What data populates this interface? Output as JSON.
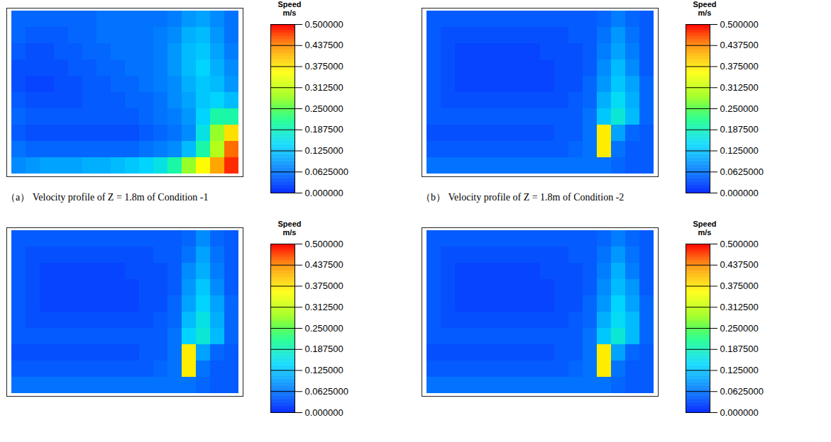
{
  "chart_data": [
    {
      "type": "heatmap",
      "title": "（a） Velocity profile of Z = 1.8m of Condition -1",
      "tick_labels": false,
      "cells": [
        [
          0.05,
          0.05,
          0.05,
          0.05,
          0.05,
          0.05,
          0.06,
          0.06,
          0.06,
          0.06,
          0.06,
          0.07,
          0.09,
          0.1,
          0.08,
          0.06
        ],
        [
          0.05,
          0.04,
          0.04,
          0.04,
          0.05,
          0.05,
          0.06,
          0.06,
          0.06,
          0.06,
          0.07,
          0.08,
          0.11,
          0.12,
          0.09,
          0.06
        ],
        [
          0.04,
          0.03,
          0.03,
          0.04,
          0.04,
          0.05,
          0.05,
          0.06,
          0.06,
          0.06,
          0.07,
          0.09,
          0.12,
          0.13,
          0.1,
          0.07
        ],
        [
          0.03,
          0.03,
          0.03,
          0.03,
          0.04,
          0.04,
          0.05,
          0.05,
          0.06,
          0.06,
          0.07,
          0.09,
          0.12,
          0.14,
          0.11,
          0.08
        ],
        [
          0.03,
          0.02,
          0.02,
          0.03,
          0.03,
          0.04,
          0.04,
          0.05,
          0.05,
          0.06,
          0.07,
          0.08,
          0.11,
          0.13,
          0.12,
          0.09
        ],
        [
          0.04,
          0.03,
          0.03,
          0.03,
          0.03,
          0.04,
          0.04,
          0.04,
          0.05,
          0.05,
          0.06,
          0.08,
          0.1,
          0.13,
          0.14,
          0.12
        ],
        [
          0.05,
          0.04,
          0.04,
          0.04,
          0.04,
          0.04,
          0.04,
          0.04,
          0.04,
          0.05,
          0.06,
          0.07,
          0.09,
          0.14,
          0.2,
          0.2
        ],
        [
          0.04,
          0.03,
          0.03,
          0.03,
          0.03,
          0.03,
          0.03,
          0.03,
          0.03,
          0.04,
          0.05,
          0.06,
          0.08,
          0.16,
          0.28,
          0.38
        ],
        [
          0.06,
          0.05,
          0.05,
          0.05,
          0.05,
          0.05,
          0.05,
          0.05,
          0.05,
          0.06,
          0.07,
          0.08,
          0.12,
          0.2,
          0.3,
          0.45
        ],
        [
          0.08,
          0.09,
          0.1,
          0.1,
          0.1,
          0.11,
          0.11,
          0.12,
          0.13,
          0.14,
          0.16,
          0.2,
          0.28,
          0.36,
          0.42,
          0.48
        ]
      ],
      "colorbar": {
        "title": "Speed",
        "unit": "m/s",
        "range": [
          0,
          0.5
        ],
        "ticks": [
          {
            "value": 0.5,
            "label": "0.500000"
          },
          {
            "value": 0.4375,
            "label": "0.437500"
          },
          {
            "value": 0.375,
            "label": "0.375000"
          },
          {
            "value": 0.3125,
            "label": "0.312500"
          },
          {
            "value": 0.25,
            "label": "0.250000"
          },
          {
            "value": 0.1875,
            "label": "0.187500"
          },
          {
            "value": 0.125,
            "label": "0.125000"
          },
          {
            "value": 0.0625,
            "label": "0.0625000"
          },
          {
            "value": 0,
            "label": "0.000000"
          }
        ]
      }
    },
    {
      "type": "heatmap",
      "title": "（b） Velocity profile of Z = 1.8m of Condition -2",
      "tick_labels": false,
      "cells": [
        [
          0.04,
          0.04,
          0.04,
          0.04,
          0.04,
          0.04,
          0.04,
          0.04,
          0.04,
          0.04,
          0.04,
          0.04,
          0.05,
          0.07,
          0.05,
          0.04
        ],
        [
          0.04,
          0.03,
          0.03,
          0.03,
          0.03,
          0.03,
          0.03,
          0.03,
          0.03,
          0.03,
          0.04,
          0.04,
          0.06,
          0.09,
          0.06,
          0.04
        ],
        [
          0.04,
          0.03,
          0.02,
          0.02,
          0.02,
          0.02,
          0.02,
          0.02,
          0.03,
          0.03,
          0.03,
          0.04,
          0.07,
          0.1,
          0.07,
          0.04
        ],
        [
          0.04,
          0.03,
          0.02,
          0.02,
          0.02,
          0.02,
          0.02,
          0.02,
          0.02,
          0.03,
          0.03,
          0.04,
          0.08,
          0.12,
          0.08,
          0.04
        ],
        [
          0.04,
          0.03,
          0.02,
          0.02,
          0.02,
          0.02,
          0.02,
          0.02,
          0.02,
          0.03,
          0.03,
          0.05,
          0.09,
          0.13,
          0.1,
          0.05
        ],
        [
          0.04,
          0.03,
          0.03,
          0.03,
          0.03,
          0.03,
          0.03,
          0.03,
          0.03,
          0.03,
          0.04,
          0.05,
          0.11,
          0.15,
          0.11,
          0.05
        ],
        [
          0.04,
          0.04,
          0.04,
          0.04,
          0.04,
          0.04,
          0.04,
          0.04,
          0.04,
          0.04,
          0.04,
          0.06,
          0.13,
          0.17,
          0.12,
          0.05
        ],
        [
          0.03,
          0.03,
          0.03,
          0.03,
          0.03,
          0.03,
          0.03,
          0.03,
          0.03,
          0.04,
          0.04,
          0.06,
          0.37,
          0.1,
          0.05,
          0.04
        ],
        [
          0.04,
          0.04,
          0.04,
          0.04,
          0.04,
          0.04,
          0.04,
          0.04,
          0.04,
          0.04,
          0.05,
          0.06,
          0.37,
          0.06,
          0.04,
          0.04
        ],
        [
          0.06,
          0.06,
          0.06,
          0.06,
          0.06,
          0.06,
          0.06,
          0.06,
          0.06,
          0.06,
          0.06,
          0.06,
          0.06,
          0.05,
          0.04,
          0.04
        ]
      ],
      "colorbar": {
        "title": "Speed",
        "unit": "m/s",
        "range": [
          0,
          0.5
        ],
        "ticks": [
          {
            "value": 0.5,
            "label": "0.500000"
          },
          {
            "value": 0.4375,
            "label": "0.437500"
          },
          {
            "value": 0.375,
            "label": "0.375000"
          },
          {
            "value": 0.3125,
            "label": "0.312500"
          },
          {
            "value": 0.25,
            "label": "0.250000"
          },
          {
            "value": 0.1875,
            "label": "0.187500"
          },
          {
            "value": 0.125,
            "label": "0.125000"
          },
          {
            "value": 0.0625,
            "label": "0.0625000"
          },
          {
            "value": 0,
            "label": "0.000000"
          }
        ]
      }
    },
    {
      "type": "heatmap",
      "tick_labels": false,
      "cells": [
        [
          0.04,
          0.04,
          0.04,
          0.04,
          0.04,
          0.04,
          0.04,
          0.04,
          0.04,
          0.04,
          0.04,
          0.04,
          0.05,
          0.08,
          0.05,
          0.04
        ],
        [
          0.04,
          0.03,
          0.03,
          0.03,
          0.03,
          0.03,
          0.03,
          0.03,
          0.03,
          0.03,
          0.04,
          0.04,
          0.06,
          0.1,
          0.06,
          0.04
        ],
        [
          0.04,
          0.03,
          0.02,
          0.02,
          0.02,
          0.02,
          0.02,
          0.02,
          0.03,
          0.03,
          0.03,
          0.04,
          0.08,
          0.11,
          0.07,
          0.04
        ],
        [
          0.04,
          0.03,
          0.02,
          0.02,
          0.02,
          0.02,
          0.02,
          0.02,
          0.02,
          0.03,
          0.03,
          0.04,
          0.09,
          0.13,
          0.08,
          0.04
        ],
        [
          0.04,
          0.03,
          0.02,
          0.02,
          0.02,
          0.02,
          0.02,
          0.02,
          0.02,
          0.03,
          0.03,
          0.05,
          0.1,
          0.14,
          0.1,
          0.05
        ],
        [
          0.04,
          0.03,
          0.03,
          0.03,
          0.03,
          0.03,
          0.03,
          0.03,
          0.03,
          0.03,
          0.04,
          0.05,
          0.12,
          0.16,
          0.11,
          0.05
        ],
        [
          0.04,
          0.04,
          0.04,
          0.04,
          0.04,
          0.04,
          0.04,
          0.04,
          0.04,
          0.04,
          0.04,
          0.06,
          0.14,
          0.17,
          0.12,
          0.05
        ],
        [
          0.03,
          0.03,
          0.03,
          0.03,
          0.03,
          0.03,
          0.03,
          0.03,
          0.03,
          0.04,
          0.04,
          0.06,
          0.37,
          0.1,
          0.05,
          0.04
        ],
        [
          0.04,
          0.04,
          0.04,
          0.04,
          0.04,
          0.04,
          0.04,
          0.04,
          0.04,
          0.04,
          0.05,
          0.06,
          0.37,
          0.06,
          0.04,
          0.04
        ],
        [
          0.06,
          0.06,
          0.06,
          0.06,
          0.06,
          0.06,
          0.06,
          0.06,
          0.06,
          0.06,
          0.06,
          0.06,
          0.06,
          0.05,
          0.04,
          0.04
        ]
      ],
      "colorbar": {
        "title": "Speed",
        "unit": "m/s",
        "range": [
          0,
          0.5
        ],
        "ticks": [
          {
            "value": 0.5,
            "label": "0.500000"
          },
          {
            "value": 0.4375,
            "label": "0.437500"
          },
          {
            "value": 0.375,
            "label": "0.375000"
          },
          {
            "value": 0.3125,
            "label": "0.312500"
          },
          {
            "value": 0.25,
            "label": "0.250000"
          },
          {
            "value": 0.1875,
            "label": "0.187500"
          },
          {
            "value": 0.125,
            "label": "0.125000"
          },
          {
            "value": 0.0625,
            "label": "0.0625000"
          },
          {
            "value": 0,
            "label": "0.000000"
          }
        ]
      }
    },
    {
      "type": "heatmap",
      "tick_labels": false,
      "cells": [
        [
          0.04,
          0.04,
          0.04,
          0.04,
          0.04,
          0.04,
          0.04,
          0.04,
          0.04,
          0.04,
          0.04,
          0.04,
          0.05,
          0.07,
          0.05,
          0.04
        ],
        [
          0.04,
          0.03,
          0.03,
          0.03,
          0.03,
          0.03,
          0.03,
          0.03,
          0.03,
          0.03,
          0.04,
          0.04,
          0.06,
          0.09,
          0.06,
          0.04
        ],
        [
          0.04,
          0.03,
          0.02,
          0.02,
          0.02,
          0.02,
          0.02,
          0.02,
          0.03,
          0.03,
          0.03,
          0.04,
          0.07,
          0.11,
          0.07,
          0.04
        ],
        [
          0.04,
          0.03,
          0.02,
          0.02,
          0.02,
          0.02,
          0.02,
          0.02,
          0.02,
          0.03,
          0.03,
          0.04,
          0.08,
          0.12,
          0.09,
          0.04
        ],
        [
          0.04,
          0.03,
          0.02,
          0.02,
          0.02,
          0.02,
          0.02,
          0.02,
          0.02,
          0.03,
          0.03,
          0.05,
          0.09,
          0.14,
          0.1,
          0.05
        ],
        [
          0.04,
          0.03,
          0.03,
          0.03,
          0.03,
          0.03,
          0.03,
          0.03,
          0.03,
          0.03,
          0.04,
          0.05,
          0.11,
          0.15,
          0.12,
          0.05
        ],
        [
          0.04,
          0.04,
          0.04,
          0.04,
          0.04,
          0.04,
          0.04,
          0.04,
          0.04,
          0.04,
          0.04,
          0.06,
          0.13,
          0.17,
          0.12,
          0.05
        ],
        [
          0.03,
          0.03,
          0.03,
          0.03,
          0.03,
          0.03,
          0.03,
          0.03,
          0.03,
          0.04,
          0.04,
          0.06,
          0.37,
          0.1,
          0.05,
          0.04
        ],
        [
          0.04,
          0.04,
          0.04,
          0.04,
          0.04,
          0.04,
          0.04,
          0.04,
          0.04,
          0.04,
          0.05,
          0.06,
          0.37,
          0.06,
          0.04,
          0.04
        ],
        [
          0.06,
          0.06,
          0.06,
          0.06,
          0.06,
          0.06,
          0.06,
          0.06,
          0.06,
          0.06,
          0.06,
          0.06,
          0.06,
          0.05,
          0.04,
          0.04
        ]
      ],
      "colorbar": {
        "title": "Speed",
        "unit": "m/s",
        "range": [
          0,
          0.5
        ],
        "ticks": [
          {
            "value": 0.5,
            "label": "0.500000"
          },
          {
            "value": 0.4375,
            "label": "0.437500"
          },
          {
            "value": 0.375,
            "label": "0.375000"
          },
          {
            "value": 0.3125,
            "label": "0.312500"
          },
          {
            "value": 0.25,
            "label": "0.250000"
          },
          {
            "value": 0.1875,
            "label": "0.187500"
          },
          {
            "value": 0.125,
            "label": "0.125000"
          },
          {
            "value": 0.0625,
            "label": "0.0625000"
          },
          {
            "value": 0,
            "label": "0.000000"
          }
        ]
      }
    }
  ]
}
